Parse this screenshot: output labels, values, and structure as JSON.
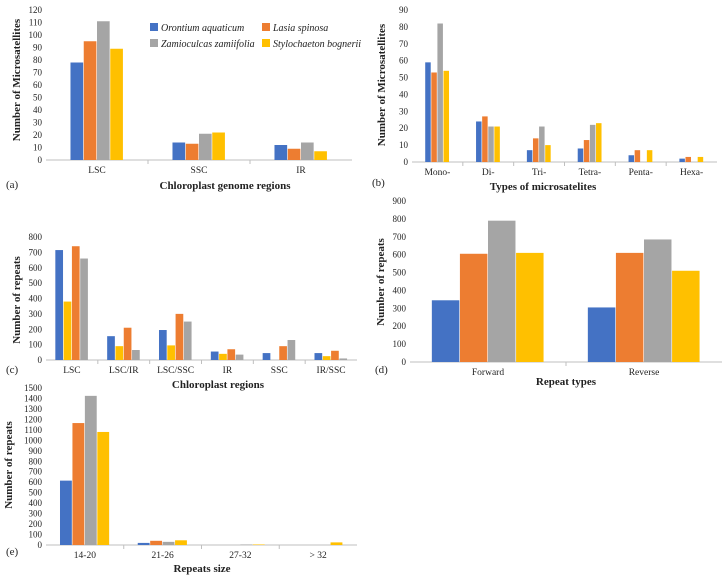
{
  "colors": [
    "#4472C4",
    "#ED7D31",
    "#A5A5A5",
    "#FFC000"
  ],
  "legend": {
    "entries": [
      "Orontium aquaticum",
      "Lasia spinosa",
      "Zamioculcas zamiifolia",
      "Stylochaeton bognerii"
    ]
  },
  "chart_data": [
    {
      "id": "a",
      "type": "bar",
      "panel_label": "(a)",
      "title": "",
      "xlabel": "Chloroplast genome regions",
      "ylabel": "Number of Microsatellites",
      "ylim": [
        0,
        120
      ],
      "ytick_step": 10,
      "categories": [
        "LSC",
        "SSC",
        "IR"
      ],
      "series": [
        {
          "name": "Orontium aquaticum",
          "values": [
            78,
            14,
            12
          ]
        },
        {
          "name": "Lasia spinosa",
          "values": [
            95,
            13,
            9
          ]
        },
        {
          "name": "Zamioculcas zamiifolia",
          "values": [
            111,
            21,
            14
          ]
        },
        {
          "name": "Stylochaeton bognerii",
          "values": [
            89,
            22,
            7
          ]
        }
      ]
    },
    {
      "id": "b",
      "type": "bar",
      "panel_label": "(b)",
      "title": "",
      "xlabel": "Types of microsatelites",
      "ylabel": "Number of Microsatellites",
      "ylim": [
        0,
        90
      ],
      "ytick_step": 10,
      "categories": [
        "Mono-",
        "Di-",
        "Tri-",
        "Tetra-",
        "Penta-",
        "Hexa-"
      ],
      "series": [
        {
          "name": "Orontium aquaticum",
          "values": [
            59,
            24,
            7,
            8,
            4,
            2
          ]
        },
        {
          "name": "Lasia spinosa",
          "values": [
            53,
            27,
            14,
            13,
            7,
            3
          ]
        },
        {
          "name": "Zamioculcas zamiifolia",
          "values": [
            82,
            21,
            21,
            22,
            0,
            0
          ]
        },
        {
          "name": "Stylochaeton bognerii",
          "values": [
            54,
            21,
            10,
            23,
            7,
            3
          ]
        }
      ]
    },
    {
      "id": "c",
      "type": "bar",
      "panel_label": "(c)",
      "title": "",
      "xlabel": "Chloroplast regions",
      "ylabel": "Number of repeats",
      "ylim": [
        0,
        800
      ],
      "ytick_step": 100,
      "categories": [
        "LSC",
        "LSC/IR",
        "LSC/SSC",
        "IR",
        "SSC",
        "IR/SSC"
      ],
      "series": [
        {
          "name": "Orontium aquaticum",
          "values": [
            715,
            155,
            195,
            55,
            45,
            45
          ]
        },
        {
          "name": "Stylochaeton bognerii",
          "values": [
            380,
            90,
            95,
            40,
            0,
            25
          ]
        },
        {
          "name": "Lasia spinosa",
          "values": [
            740,
            210,
            300,
            70,
            90,
            60
          ]
        },
        {
          "name": "Zamioculcas zamiifolia",
          "values": [
            660,
            65,
            250,
            35,
            130,
            10
          ]
        }
      ]
    },
    {
      "id": "d",
      "type": "bar",
      "panel_label": "(d)",
      "title": "",
      "xlabel": "Repeat types",
      "ylabel": "Number of repeats",
      "ylim": [
        0,
        900
      ],
      "ytick_step": 100,
      "categories": [
        "Forward",
        "Reverse"
      ],
      "series": [
        {
          "name": "Orontium aquaticum",
          "values": [
            345,
            305
          ]
        },
        {
          "name": "Lasia spinosa",
          "values": [
            605,
            610
          ]
        },
        {
          "name": "Zamioculcas zamiifolia",
          "values": [
            790,
            685
          ]
        },
        {
          "name": "Stylochaeton bognerii",
          "values": [
            610,
            510
          ]
        }
      ]
    },
    {
      "id": "e",
      "type": "bar",
      "panel_label": "(e)",
      "title": "",
      "xlabel": "Repeats size",
      "ylabel": "Number of repeats",
      "ylim": [
        0,
        1500
      ],
      "ytick_step": 100,
      "categories": [
        "14-20",
        "21-26",
        "27-32",
        "> 32"
      ],
      "series": [
        {
          "name": "Orontium aquaticum",
          "values": [
            615,
            20,
            0,
            0
          ]
        },
        {
          "name": "Lasia spinosa",
          "values": [
            1165,
            40,
            0,
            0
          ]
        },
        {
          "name": "Zamioculcas zamiifolia",
          "values": [
            1425,
            30,
            5,
            0
          ]
        },
        {
          "name": "Stylochaeton bognerii",
          "values": [
            1080,
            45,
            5,
            25
          ]
        }
      ]
    }
  ]
}
